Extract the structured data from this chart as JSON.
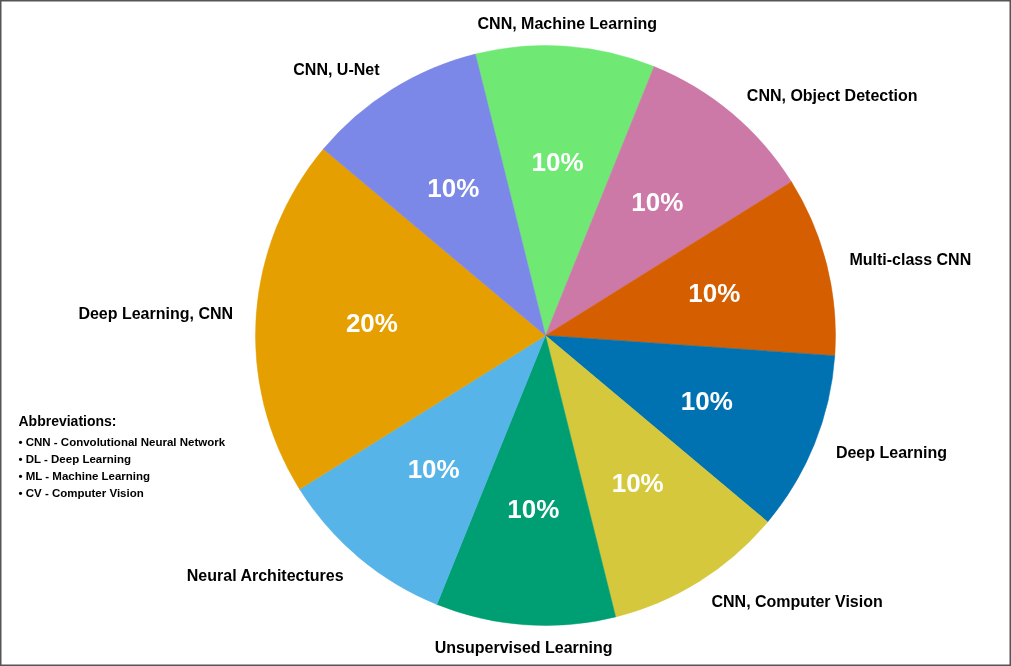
{
  "chart_data": {
    "type": "pie",
    "categories": [
      "CNN, Machine Learning",
      "CNN, Object Detection",
      "Multi-class CNN",
      "Deep Learning",
      "CNN, Computer Vision",
      "Unsupervised Learning",
      "Neural Architectures",
      "Deep Learning, CNN",
      "CNN, U-Net"
    ],
    "values": [
      10,
      10,
      10,
      10,
      10,
      10,
      10,
      20,
      10
    ],
    "value_labels": [
      "10%",
      "10%",
      "10%",
      "10%",
      "10%",
      "10%",
      "10%",
      "20%",
      "10%"
    ],
    "colors": [
      "#6fe874",
      "#cc79a7",
      "#d55e00",
      "#0072b2",
      "#d6c83c",
      "#009e73",
      "#56b4e9",
      "#e69f00",
      "#7b88e8"
    ],
    "annotations": [
      "Abbreviations:",
      "• CNN - Convolutional Neural Network",
      "• DL - Deep Learning",
      "• ML - Machine Learning",
      "• CV - Computer Vision"
    ]
  }
}
